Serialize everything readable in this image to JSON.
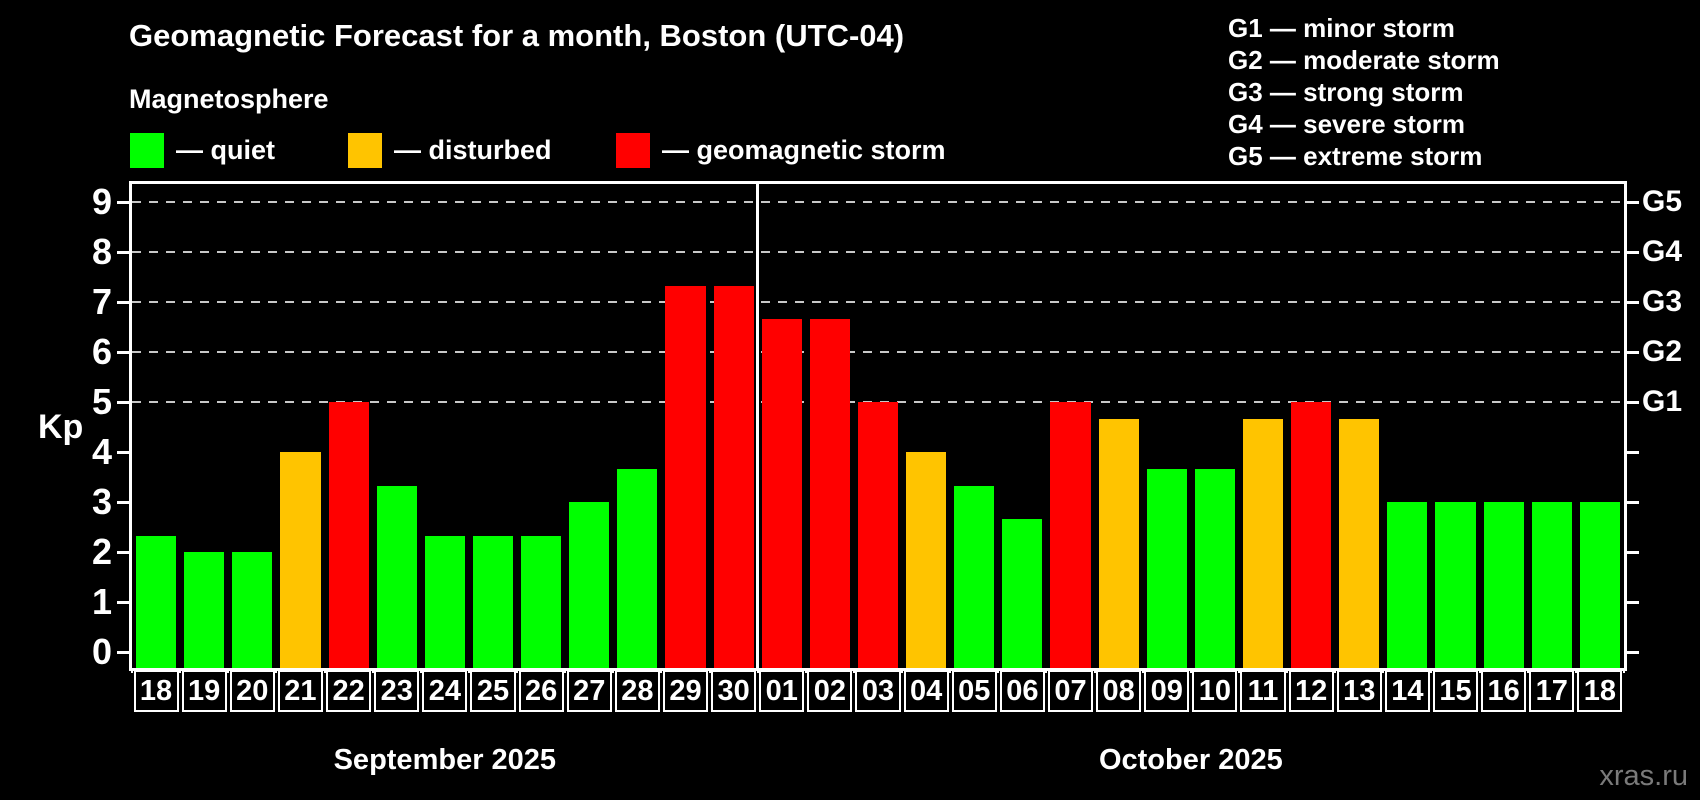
{
  "title": "Geomagnetic Forecast for a month, Boston (UTC-04)",
  "legend": {
    "heading": "Magnetosphere",
    "items": [
      {
        "key": "quiet",
        "label": "— quiet"
      },
      {
        "key": "disturbed",
        "label": "— disturbed"
      },
      {
        "key": "storm",
        "label": "— geomagnetic storm"
      }
    ]
  },
  "storm_scale": [
    "G1 — minor storm",
    "G2 — moderate storm",
    "G3 — strong storm",
    "G4 — severe storm",
    "G5 — extreme storm"
  ],
  "colors": {
    "quiet": "#00ff00",
    "disturbed": "#ffc400",
    "storm": "#ff0000",
    "background": "#000000",
    "text": "#ffffff",
    "grid": "#c8c8c8",
    "frame": "#ffffff",
    "watermark": "#7a7a7a"
  },
  "chart_data": {
    "type": "bar",
    "title": "Geomagnetic Forecast for a month, Boston (UTC-04)",
    "ylabel": "Kp",
    "ylim": [
      0,
      9
    ],
    "y_ticks": [
      0,
      1,
      2,
      3,
      4,
      5,
      6,
      7,
      8,
      9
    ],
    "grid_kp_levels": [
      5,
      6,
      7,
      8,
      9
    ],
    "right_axis": [
      {
        "kp": 5,
        "label": "G1"
      },
      {
        "kp": 6,
        "label": "G2"
      },
      {
        "kp": 7,
        "label": "G3"
      },
      {
        "kp": 8,
        "label": "G4"
      },
      {
        "kp": 9,
        "label": "G5"
      }
    ],
    "months": [
      {
        "label": "September 2025",
        "key": "sep",
        "bars": [
          {
            "day": "18",
            "kp": 2.33,
            "status": "quiet"
          },
          {
            "day": "19",
            "kp": 2.0,
            "status": "quiet"
          },
          {
            "day": "20",
            "kp": 2.0,
            "status": "quiet"
          },
          {
            "day": "21",
            "kp": 4.0,
            "status": "disturbed"
          },
          {
            "day": "22",
            "kp": 5.0,
            "status": "storm"
          },
          {
            "day": "23",
            "kp": 3.33,
            "status": "quiet"
          },
          {
            "day": "24",
            "kp": 2.33,
            "status": "quiet"
          },
          {
            "day": "25",
            "kp": 2.33,
            "status": "quiet"
          },
          {
            "day": "26",
            "kp": 2.33,
            "status": "quiet"
          },
          {
            "day": "27",
            "kp": 3.0,
            "status": "quiet"
          },
          {
            "day": "28",
            "kp": 3.67,
            "status": "quiet"
          },
          {
            "day": "29",
            "kp": 7.33,
            "status": "storm"
          },
          {
            "day": "30",
            "kp": 7.33,
            "status": "storm"
          }
        ]
      },
      {
        "label": "October 2025",
        "key": "oct",
        "bars": [
          {
            "day": "01",
            "kp": 6.67,
            "status": "storm"
          },
          {
            "day": "02",
            "kp": 6.67,
            "status": "storm"
          },
          {
            "day": "03",
            "kp": 5.0,
            "status": "storm"
          },
          {
            "day": "04",
            "kp": 4.0,
            "status": "disturbed"
          },
          {
            "day": "05",
            "kp": 3.33,
            "status": "quiet"
          },
          {
            "day": "06",
            "kp": 2.67,
            "status": "quiet"
          },
          {
            "day": "07",
            "kp": 5.0,
            "status": "storm"
          },
          {
            "day": "08",
            "kp": 4.67,
            "status": "disturbed"
          },
          {
            "day": "09",
            "kp": 3.67,
            "status": "quiet"
          },
          {
            "day": "10",
            "kp": 3.67,
            "status": "quiet"
          },
          {
            "day": "11",
            "kp": 4.67,
            "status": "disturbed"
          },
          {
            "day": "12",
            "kp": 5.0,
            "status": "storm"
          },
          {
            "day": "13",
            "kp": 4.67,
            "status": "disturbed"
          },
          {
            "day": "14",
            "kp": 3.0,
            "status": "quiet"
          },
          {
            "day": "15",
            "kp": 3.0,
            "status": "quiet"
          },
          {
            "day": "16",
            "kp": 3.0,
            "status": "quiet"
          },
          {
            "day": "17",
            "kp": 3.0,
            "status": "quiet"
          },
          {
            "day": "18",
            "kp": 3.0,
            "status": "quiet"
          }
        ]
      }
    ]
  },
  "watermark": "xras.ru"
}
